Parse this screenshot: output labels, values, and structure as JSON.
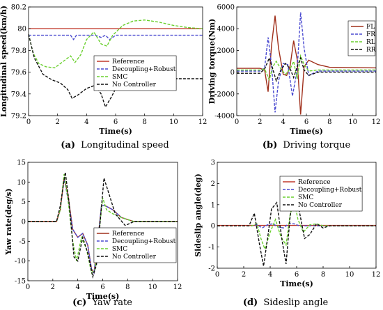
{
  "chart_data": [
    {
      "type": "line",
      "caption_label": "(a)",
      "caption_text": "Longitudinal speed",
      "xlabel": "Time(s)",
      "ylabel": "Longitudinal speed(km/h)",
      "xlim": [
        0,
        12
      ],
      "ylim": [
        79.2,
        80.2
      ],
      "xticks": [
        "0",
        "2",
        "4",
        "6",
        "8",
        "10",
        "12"
      ],
      "yticks": [
        "79.2",
        "79.4",
        "79.6",
        "79.8",
        "80",
        "80.2"
      ],
      "legend_position": "right",
      "series": [
        {
          "name": "Reference",
          "color": "#c0392b",
          "style": "solid",
          "x": [
            0,
            12
          ],
          "y": [
            80,
            80
          ]
        },
        {
          "name": "Decoupling+Robust",
          "color": "#4a4ad0",
          "style": "dash",
          "x": [
            0,
            2.4,
            2.9,
            3.1,
            3.3,
            3.6,
            4.6,
            5.0,
            5.3,
            5.6,
            6.0,
            12
          ],
          "y": [
            79.94,
            79.94,
            79.94,
            79.9,
            79.94,
            79.94,
            79.94,
            79.92,
            79.94,
            79.9,
            79.94,
            79.94
          ]
        },
        {
          "name": "SMC",
          "color": "#6ad02e",
          "style": "dash",
          "x": [
            0,
            0.3,
            0.7,
            1.2,
            1.8,
            2.4,
            2.9,
            3.2,
            3.6,
            4.0,
            4.5,
            5.0,
            5.4,
            5.8,
            6.5,
            7.2,
            8.0,
            9.0,
            10.0,
            11.0,
            12.0
          ],
          "y": [
            79.95,
            79.78,
            79.68,
            79.65,
            79.64,
            79.7,
            79.75,
            79.69,
            79.76,
            79.9,
            79.97,
            79.86,
            79.84,
            79.94,
            80.03,
            80.07,
            80.08,
            80.06,
            80.03,
            80.01,
            80.0
          ]
        },
        {
          "name": "No Controller",
          "color": "#111111",
          "style": "dash",
          "x": [
            0,
            0.4,
            1.0,
            1.6,
            2.2,
            2.7,
            3.0,
            3.4,
            4.0,
            4.6,
            5.0,
            5.3,
            5.7,
            6.2,
            6.7,
            7.5,
            9.0,
            12.0
          ],
          "y": [
            79.95,
            79.73,
            79.58,
            79.53,
            79.5,
            79.44,
            79.36,
            79.39,
            79.45,
            79.48,
            79.4,
            79.28,
            79.37,
            79.5,
            79.53,
            79.54,
            79.54,
            79.54
          ]
        }
      ]
    },
    {
      "type": "line",
      "caption_label": "(b)",
      "caption_text": "Driving torque",
      "xlabel": "Time(s)",
      "ylabel": "Driving torque(Nm)",
      "xlim": [
        0,
        12
      ],
      "ylim": [
        -4000,
        6000
      ],
      "xticks": [
        "0",
        "2",
        "4",
        "6",
        "8",
        "10",
        "12"
      ],
      "yticks": [
        "-4000",
        "-2000",
        "0",
        "2000",
        "4000",
        "6000"
      ],
      "legend_position": "top-right",
      "series": [
        {
          "name": "FL",
          "color": "#a0301c",
          "style": "solid",
          "x": [
            0,
            2.0,
            2.4,
            2.7,
            3.0,
            3.3,
            3.6,
            4.0,
            4.3,
            4.6,
            4.9,
            5.2,
            5.5,
            5.8,
            6.2,
            7.0,
            8.0,
            12.0
          ],
          "y": [
            350,
            350,
            200,
            -1800,
            2500,
            5200,
            2200,
            -200,
            -300,
            600,
            2900,
            1200,
            -3900,
            500,
            1100,
            700,
            450,
            400
          ]
        },
        {
          "name": "FR",
          "color": "#4a4ad0",
          "style": "dash",
          "x": [
            0,
            2.0,
            2.4,
            2.7,
            3.0,
            3.3,
            3.6,
            4.0,
            4.4,
            4.8,
            5.2,
            5.5,
            5.8,
            6.2,
            7.0,
            8.0,
            12.0
          ],
          "y": [
            100,
            100,
            400,
            3200,
            600,
            -3700,
            -800,
            800,
            700,
            -2200,
            200,
            5500,
            2200,
            -300,
            100,
            100,
            100
          ]
        },
        {
          "name": "RL",
          "color": "#6ad02e",
          "style": "dash",
          "x": [
            0,
            2.0,
            2.4,
            2.8,
            3.1,
            3.4,
            3.8,
            4.2,
            4.6,
            4.9,
            5.2,
            5.5,
            5.8,
            6.2,
            7.0,
            12.0
          ],
          "y": [
            200,
            200,
            300,
            -700,
            500,
            1000,
            300,
            -200,
            300,
            1000,
            -600,
            1500,
            700,
            100,
            200,
            200
          ]
        },
        {
          "name": "RR",
          "color": "#111111",
          "style": "dash",
          "x": [
            0,
            2.0,
            2.4,
            2.8,
            3.1,
            3.4,
            3.8,
            4.2,
            4.6,
            4.9,
            5.2,
            5.5,
            5.8,
            6.2,
            7.0,
            12.0
          ],
          "y": [
            -100,
            -100,
            300,
            1300,
            300,
            -800,
            200,
            800,
            300,
            -500,
            500,
            1300,
            200,
            -300,
            0,
            0
          ]
        }
      ]
    },
    {
      "type": "line",
      "caption_label": "(c)",
      "caption_text": "Yaw rate",
      "xlabel": "Time(s)",
      "ylabel": "Yaw rate(deg/s)",
      "xlim": [
        0,
        12
      ],
      "ylim": [
        -15,
        15
      ],
      "xticks": [
        "0",
        "2",
        "4",
        "6",
        "8",
        "10",
        "12"
      ],
      "yticks": [
        "-15",
        "-10",
        "-5",
        "0",
        "5",
        "10",
        "15"
      ],
      "legend_position": "bottom-right",
      "series": [
        {
          "name": "Reference",
          "color": "#a0301c",
          "style": "solid",
          "x": [
            0,
            2.3,
            2.6,
            2.9,
            3.2,
            3.6,
            4.0,
            4.4,
            4.8,
            5.1,
            5.3,
            5.6,
            5.9,
            6.2,
            6.8,
            7.5,
            8.5,
            12.0
          ],
          "y": [
            0,
            0,
            3,
            11,
            7,
            -2,
            -4,
            -3,
            -6,
            -12,
            -13,
            -5,
            4,
            4,
            3,
            1,
            0,
            0
          ]
        },
        {
          "name": "Decoupling+Robust",
          "color": "#4a4ad0",
          "style": "dash",
          "x": [
            0,
            2.3,
            2.6,
            2.9,
            3.2,
            3.6,
            4.0,
            4.4,
            4.8,
            5.1,
            5.3,
            5.6,
            5.9,
            6.2,
            6.8,
            7.5,
            8.5,
            12.0
          ],
          "y": [
            0,
            0,
            3,
            11,
            6,
            -2,
            -4,
            -3,
            -6,
            -12,
            -13,
            -5,
            4,
            4,
            3,
            1,
            0,
            0
          ]
        },
        {
          "name": "SMC",
          "color": "#6ad02e",
          "style": "dash",
          "x": [
            0,
            2.3,
            2.6,
            2.9,
            3.2,
            3.6,
            3.9,
            4.3,
            4.7,
            5.1,
            5.4,
            5.7,
            6.0,
            6.3,
            6.8,
            7.5,
            8.5,
            12.0
          ],
          "y": [
            0,
            0,
            3,
            12,
            6,
            -5,
            -10,
            -4,
            -7,
            -13,
            -12,
            -3,
            6,
            3,
            2,
            1,
            0,
            0
          ]
        },
        {
          "name": "No Controller",
          "color": "#111111",
          "style": "dash",
          "x": [
            0,
            2.3,
            2.6,
            3.0,
            3.3,
            3.7,
            4.0,
            4.4,
            4.8,
            5.2,
            5.5,
            5.8,
            6.1,
            6.5,
            7.0,
            7.8,
            8.5,
            12.0
          ],
          "y": [
            0,
            0,
            4,
            12.5,
            5,
            -9,
            -10,
            -4,
            -8,
            -14,
            -11,
            0,
            11,
            7,
            2,
            -1,
            0,
            0
          ]
        }
      ]
    },
    {
      "type": "line",
      "caption_label": "(d)",
      "caption_text": "Sideslip angle",
      "xlabel": "Time(s)",
      "ylabel": "Sideslip angle(deg)",
      "xlim": [
        0,
        12
      ],
      "ylim": [
        -2,
        3
      ],
      "xticks": [
        "0",
        "2",
        "4",
        "6",
        "8",
        "10",
        "12"
      ],
      "yticks": [
        "-2",
        "-1",
        "0",
        "1",
        "2",
        "3"
      ],
      "legend_position": "top-right",
      "series": [
        {
          "name": "Reference",
          "color": "#c0392b",
          "style": "solid",
          "x": [
            0,
            12
          ],
          "y": [
            0.02,
            0.02
          ]
        },
        {
          "name": "Decoupling+Robust",
          "color": "#4a4ad0",
          "style": "dash",
          "x": [
            0,
            2.6,
            3.0,
            3.4,
            3.8,
            4.2,
            4.6,
            5.0,
            5.4,
            5.8,
            6.2,
            7.0,
            12.0
          ],
          "y": [
            0,
            0,
            0.05,
            -0.1,
            0.05,
            0.1,
            -0.05,
            -0.1,
            0.1,
            0.1,
            0,
            0,
            0
          ]
        },
        {
          "name": "SMC",
          "color": "#6ad02e",
          "style": "dash",
          "x": [
            0,
            2.6,
            3.0,
            3.3,
            3.6,
            4.0,
            4.4,
            4.8,
            5.2,
            5.5,
            5.8,
            6.1,
            6.5,
            7.0,
            7.5,
            8.0,
            12.0
          ],
          "y": [
            0,
            0,
            0.1,
            -0.6,
            -1.1,
            -0.3,
            0.3,
            -0.5,
            -0.9,
            0.5,
            1.2,
            0.3,
            -0.3,
            0.05,
            0.1,
            0,
            0
          ]
        },
        {
          "name": "No Controller",
          "color": "#111111",
          "style": "dash",
          "x": [
            0,
            2.4,
            2.8,
            3.2,
            3.5,
            3.8,
            4.1,
            4.5,
            4.9,
            5.2,
            5.5,
            5.9,
            6.2,
            6.6,
            7.0,
            7.5,
            8.0,
            8.5,
            12.0
          ],
          "y": [
            0,
            0,
            0.6,
            -0.9,
            -1.9,
            -0.6,
            0.8,
            1.1,
            -0.7,
            -1.8,
            0.4,
            2.1,
            0.7,
            -0.6,
            -0.4,
            0.1,
            -0.1,
            0,
            0
          ]
        }
      ]
    }
  ]
}
